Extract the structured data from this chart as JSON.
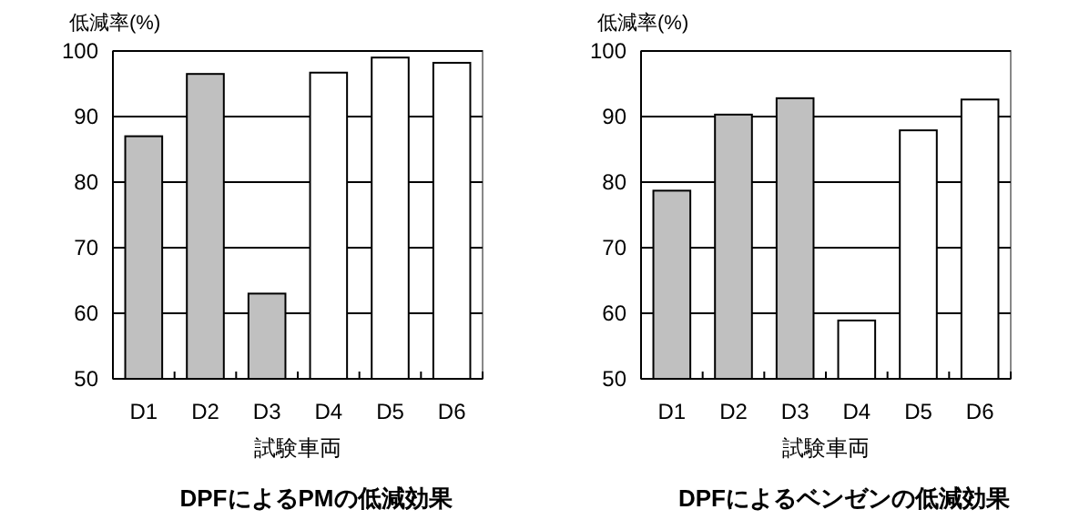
{
  "chart_data": [
    {
      "type": "bar",
      "title": "DPFによるPMの低減効果",
      "xlabel": "試験車両",
      "ylabel": "低減率(%)",
      "categories": [
        "D1",
        "D2",
        "D3",
        "D4",
        "D5",
        "D6"
      ],
      "values": [
        87,
        96.5,
        63,
        96.7,
        99,
        98.2
      ],
      "colors": [
        "#c0c0c0",
        "#c0c0c0",
        "#c0c0c0",
        "#ffffff",
        "#ffffff",
        "#ffffff"
      ],
      "ylim": [
        50,
        100
      ],
      "yticks": [
        50,
        60,
        70,
        80,
        90,
        100
      ],
      "grid": "y"
    },
    {
      "type": "bar",
      "title": "DPFによるベンゼンの低減効果",
      "xlabel": "試験車両",
      "ylabel": "低減率(%)",
      "categories": [
        "D1",
        "D2",
        "D3",
        "D4",
        "D5",
        "D6"
      ],
      "values": [
        78.7,
        90.3,
        92.8,
        58.9,
        87.9,
        92.6
      ],
      "colors": [
        "#c0c0c0",
        "#c0c0c0",
        "#c0c0c0",
        "#ffffff",
        "#ffffff",
        "#ffffff"
      ],
      "ylim": [
        50,
        100
      ],
      "yticks": [
        50,
        60,
        70,
        80,
        90,
        100
      ],
      "grid": "y"
    }
  ]
}
